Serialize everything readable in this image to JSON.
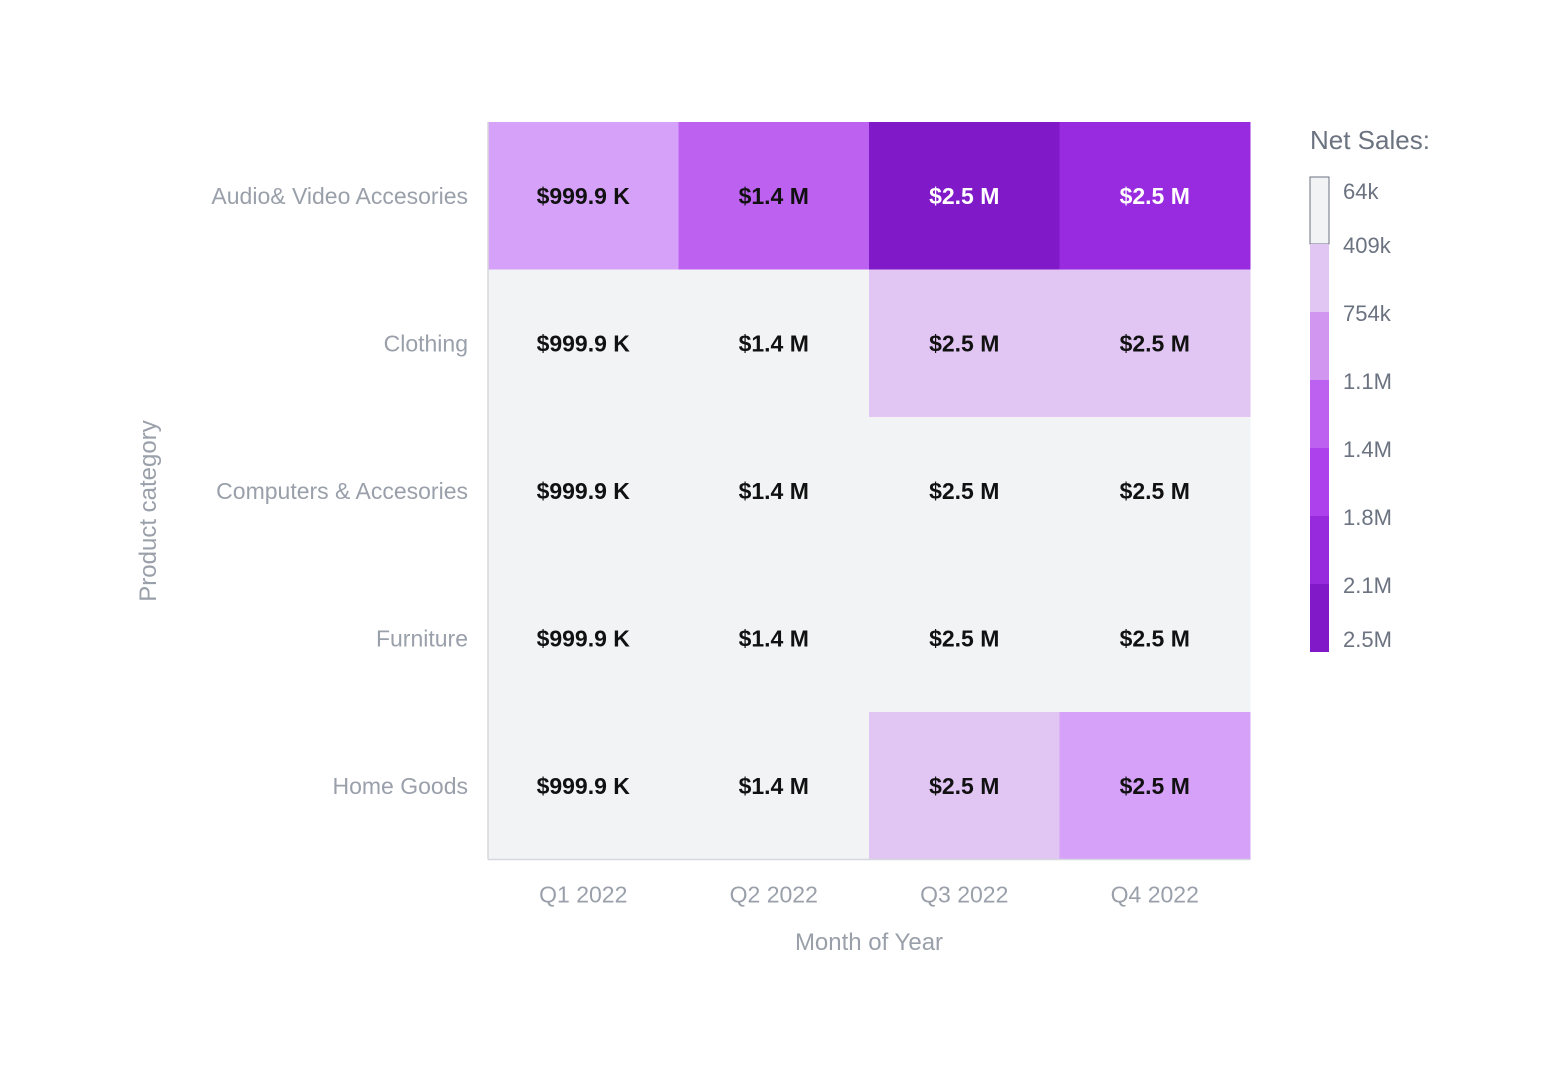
{
  "chart_data": {
    "type": "heatmap",
    "xlabel": "Month of Year",
    "ylabel": "Product category",
    "x_categories": [
      "Q1 2022",
      "Q2 2022",
      "Q3 2022",
      "Q4 2022"
    ],
    "y_categories": [
      "Audio& Video Accesories",
      "Clothing",
      "Computers & Accesories",
      "Furniture",
      "Home Goods"
    ],
    "cell_labels": [
      [
        "$999.9 K",
        "$1.4 M",
        "$2.5 M",
        "$2.5 M"
      ],
      [
        "$999.9 K",
        "$1.4 M",
        "$2.5 M",
        "$2.5 M"
      ],
      [
        "$999.9 K",
        "$1.4 M",
        "$2.5 M",
        "$2.5 M"
      ],
      [
        "$999.9 K",
        "$1.4 M",
        "$2.5 M",
        "$2.5 M"
      ],
      [
        "$999.9 K",
        "$1.4 M",
        "$2.5 M",
        "$2.5 M"
      ]
    ],
    "color_bins": [
      [
        3,
        5,
        7,
        6
      ],
      [
        0,
        0,
        1,
        1
      ],
      [
        0,
        0,
        0,
        0
      ],
      [
        0,
        0,
        0,
        0
      ],
      [
        0,
        0,
        1,
        3
      ]
    ],
    "legend": {
      "title": "Net Sales:",
      "ticks": [
        "64k",
        "409k",
        "754k",
        "1.1M",
        "1.4M",
        "1.8M",
        "2.1M",
        "2.5M"
      ],
      "colors": [
        "#f2f3f5",
        "#e1c6f4",
        "#d196f0",
        "#bd62f0",
        "#ad42ec",
        "#982ade",
        "#8219c8"
      ]
    },
    "colors": {
      "bins": [
        "#f2f3f5",
        "#e1c6f4",
        "#d096f0",
        "#d6a1f8",
        "#bb65f2",
        "#bd62f0",
        "#982adf",
        "#8019c8"
      ],
      "dark_text": "#111111",
      "light_text": "#ffffff"
    }
  }
}
